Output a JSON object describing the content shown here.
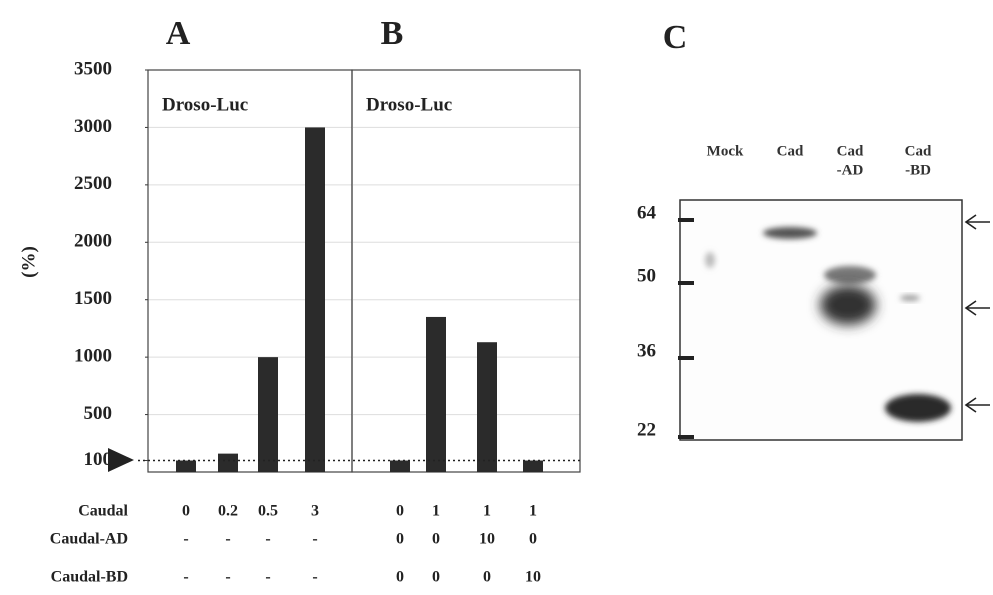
{
  "chart_data": [
    {
      "type": "bar",
      "panel": "A",
      "annotation": "Droso-Luc",
      "y_label": "(%)",
      "categories": [
        "0",
        "0.2",
        "0.5",
        "3"
      ],
      "condition_labels": [
        [
          "-",
          "-",
          "-",
          "-"
        ],
        [
          "-",
          "-",
          "-",
          "-"
        ]
      ],
      "values": [
        100,
        160,
        1000,
        3000
      ],
      "color": "#2b2b2b",
      "ylim": [
        0,
        3500
      ],
      "yticks": [
        100,
        500,
        1000,
        1500,
        2000,
        2500,
        3000,
        3500
      ],
      "grid": true
    },
    {
      "type": "bar",
      "panel": "B",
      "annotation": "Droso-Luc",
      "categories": [
        "0",
        "1",
        "1",
        "1"
      ],
      "condition_labels": [
        [
          "0",
          "0",
          "10",
          "0"
        ],
        [
          "0",
          "0",
          "0",
          "10"
        ]
      ],
      "values": [
        100,
        1350,
        1130,
        100
      ],
      "color": "#2b2b2b",
      "ylim": [
        0,
        3500
      ],
      "grid": true
    }
  ],
  "condition_rows": [
    "Caudal",
    "Caudal-AD",
    "Caudal-BD"
  ],
  "blot": {
    "panel": "C",
    "lanes": [
      [
        "Mock"
      ],
      [
        "Cad"
      ],
      [
        "Cad",
        "-AD"
      ],
      [
        "Cad",
        "-BD"
      ]
    ],
    "markers": [
      "64",
      "50",
      "36",
      "22"
    ]
  }
}
